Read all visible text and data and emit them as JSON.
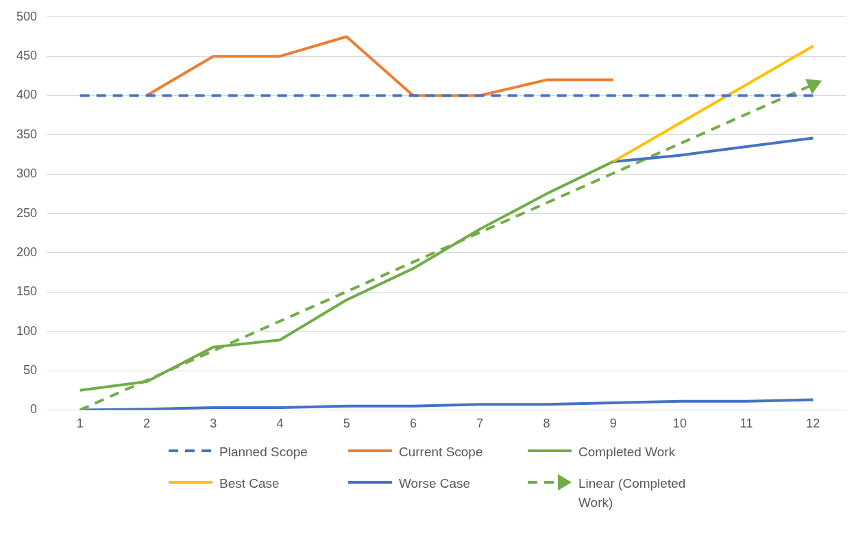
{
  "chart_data": {
    "type": "line",
    "x": [
      1,
      2,
      3,
      4,
      5,
      6,
      7,
      8,
      9,
      10,
      11,
      12
    ],
    "xlim": [
      0.5,
      12.5
    ],
    "xticks": [
      1,
      2,
      3,
      4,
      5,
      6,
      7,
      8,
      9,
      10,
      11,
      12
    ],
    "ylim": [
      0,
      500
    ],
    "yticks": [
      0,
      50,
      100,
      150,
      200,
      250,
      300,
      350,
      400,
      450,
      500
    ],
    "grid": "y",
    "legend": "bottom",
    "series": [
      {
        "name": "Planned Scope",
        "color": "#4472c4",
        "line_style": "dashed",
        "values": [
          400,
          400,
          400,
          400,
          400,
          400,
          400,
          400,
          400,
          400,
          400,
          400
        ]
      },
      {
        "name": "Current Scope",
        "color": "#ed7d31",
        "values": [
          null,
          400,
          450,
          450,
          475,
          400,
          400,
          420,
          420,
          null,
          null,
          null
        ]
      },
      {
        "name": "Completed Work",
        "color": "#70ad47",
        "values": [
          25,
          36,
          80,
          89,
          140,
          180,
          230,
          275,
          316,
          null,
          null,
          null
        ]
      },
      {
        "name": "Best Case",
        "color": "#ffc000",
        "values": [
          null,
          null,
          null,
          null,
          null,
          null,
          null,
          null,
          316,
          365,
          414,
          463
        ]
      },
      {
        "name": "Worse Case",
        "color": "#4472c4",
        "values": [
          null,
          null,
          null,
          null,
          null,
          null,
          null,
          null,
          316,
          324,
          335,
          346
        ]
      },
      {
        "name": "Linear (Completed Work)",
        "color": "#70ad47",
        "line_style": "dashed",
        "marker": "triangle",
        "x": [
          1,
          12
        ],
        "values": [
          0,
          414
        ]
      },
      {
        "color": "#4472c4",
        "values": [
          0,
          1,
          3,
          3,
          5,
          5,
          7,
          7,
          9,
          11,
          11,
          13
        ]
      }
    ]
  }
}
